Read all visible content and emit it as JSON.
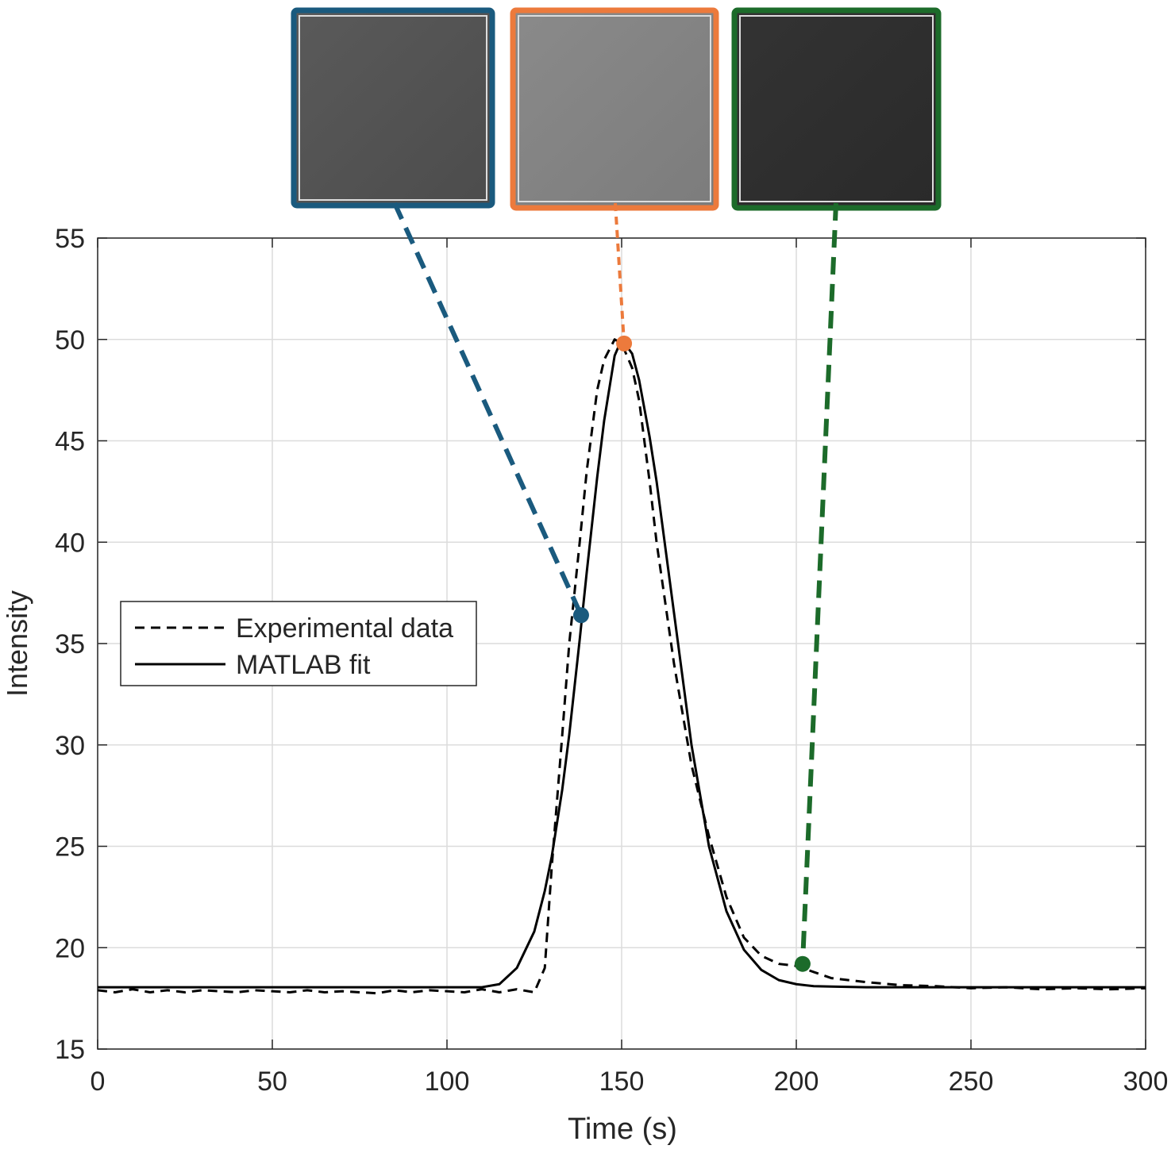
{
  "chart_data": {
    "type": "line",
    "xlabel": "Time (s)",
    "ylabel": "Intensity",
    "x": [
      0,
      5,
      10,
      15,
      20,
      25,
      30,
      35,
      40,
      45,
      50,
      55,
      60,
      65,
      70,
      75,
      80,
      85,
      90,
      95,
      100,
      105,
      110,
      115,
      120,
      125,
      128,
      130,
      133,
      135,
      138,
      140,
      143,
      145,
      148,
      150,
      153,
      155,
      158,
      160,
      165,
      170,
      175,
      180,
      185,
      190,
      195,
      200,
      205,
      210,
      220,
      230,
      240,
      250,
      260,
      270,
      280,
      290,
      300
    ],
    "series": [
      {
        "name": "Experimental data",
        "color": "#000000",
        "dash": true,
        "values": [
          17.9,
          17.8,
          17.95,
          17.8,
          17.9,
          17.8,
          17.9,
          17.85,
          17.8,
          17.9,
          17.85,
          17.8,
          17.9,
          17.8,
          17.85,
          17.8,
          17.75,
          17.9,
          17.8,
          17.9,
          17.85,
          17.8,
          17.95,
          17.8,
          17.95,
          17.8,
          19.0,
          24.0,
          30.5,
          35.0,
          40.0,
          43.5,
          47.5,
          49.0,
          50.0,
          49.8,
          48.6,
          47.0,
          43.0,
          40.0,
          34.0,
          29.0,
          25.5,
          22.5,
          20.5,
          19.6,
          19.2,
          19.1,
          18.8,
          18.5,
          18.3,
          18.15,
          18.1,
          18.0,
          18.05,
          17.95,
          18.0,
          17.95,
          18.0
        ]
      },
      {
        "name": "MATLAB fit",
        "color": "#000000",
        "dash": false,
        "values": [
          18.05,
          18.05,
          18.05,
          18.05,
          18.05,
          18.05,
          18.05,
          18.05,
          18.05,
          18.05,
          18.05,
          18.05,
          18.05,
          18.05,
          18.05,
          18.05,
          18.05,
          18.05,
          18.05,
          18.05,
          18.05,
          18.05,
          18.05,
          18.2,
          19.0,
          20.8,
          22.8,
          24.5,
          27.8,
          30.5,
          35.2,
          38.5,
          43.2,
          46.0,
          49.2,
          50.0,
          49.3,
          48.0,
          45.2,
          43.0,
          36.5,
          30.0,
          25.0,
          21.8,
          19.9,
          18.9,
          18.4,
          18.2,
          18.1,
          18.08,
          18.05,
          18.05,
          18.05,
          18.05,
          18.05,
          18.05,
          18.05,
          18.05,
          18.05
        ]
      }
    ],
    "highlights": [
      {
        "x": 138.4,
        "y": 36.4,
        "color": "#1a5a7e"
      },
      {
        "x": 150.7,
        "y": 49.8,
        "color": "#ec7a3c"
      },
      {
        "x": 201.8,
        "y": 19.2,
        "color": "#1c6b2a"
      }
    ],
    "xlim": [
      0,
      300
    ],
    "xticks": [
      0,
      50,
      100,
      150,
      200,
      250,
      300
    ],
    "ylim": [
      15,
      55
    ],
    "yticks": [
      15,
      20,
      25,
      30,
      35,
      40,
      45,
      50,
      55
    ],
    "grid": true,
    "legend": "middle-left"
  }
}
